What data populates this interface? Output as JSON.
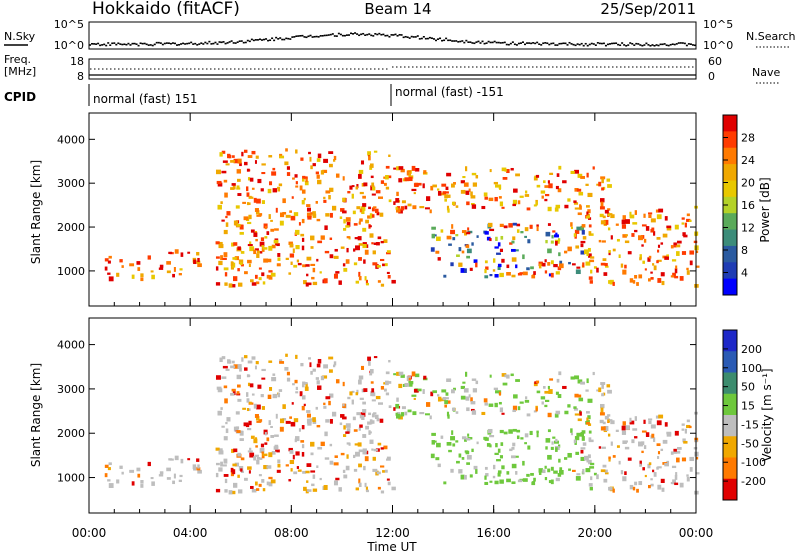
{
  "header": {
    "station": "Hokkaido (fitACF)",
    "beam": "Beam 14",
    "date": "25/Sep/2011"
  },
  "top_panels": {
    "nsky_label": "N.Sky",
    "nsearch_label": "N.Search",
    "noise_tick_high": "10^5",
    "noise_tick_low": "10^0",
    "freq_label_1": "Freq.",
    "freq_label_2": "[MHz]",
    "freq_tick_high": "18",
    "freq_tick_low": "8",
    "nave_label": "Nave",
    "nave_tick_high": "60",
    "nave_tick_low": "0",
    "cpid_label": "CPID",
    "cpid_1": "normal (fast) 151",
    "cpid_2": "normal (fast) -151"
  },
  "chart_data": [
    {
      "type": "heatmap",
      "name": "power",
      "ylabel": "Slant Range [km]",
      "xlabel": "Time UT",
      "x_ticks": [
        "00:00",
        "04:00",
        "08:00",
        "12:00",
        "16:00",
        "20:00",
        "00:00"
      ],
      "y_ticks": [
        1000,
        2000,
        3000,
        4000
      ],
      "ylim": [
        200,
        4600
      ],
      "xlim_hours": [
        0,
        24
      ],
      "colorbar_label": "Power [dB]",
      "colorbar_ticks": [
        "28",
        "24",
        "20",
        "16",
        "12",
        "8",
        "4"
      ],
      "colorbar_colors": [
        "#e00000",
        "#ff3b00",
        "#ff7a00",
        "#f0a800",
        "#e8c800",
        "#b4d228",
        "#5aaa5a",
        "#3c8c7a",
        "#2a5aa0",
        "#1f3cb4",
        "#0000ff"
      ],
      "features": [
        {
          "t0": 0.5,
          "t1": 2.1,
          "r0": 850,
          "r1": 1350,
          "level": "high"
        },
        {
          "t0": 2.3,
          "t1": 4.3,
          "r0": 900,
          "r1": 1500,
          "level": "high"
        },
        {
          "t0": 5.0,
          "t1": 12.0,
          "r0": 700,
          "r1": 3800,
          "level": "high"
        },
        {
          "t0": 12.0,
          "t1": 20.5,
          "r0": 2400,
          "r1": 3400,
          "level": "high"
        },
        {
          "t0": 13.5,
          "t1": 19.5,
          "r0": 900,
          "r1": 2100,
          "level": "mixed"
        },
        {
          "t0": 19.0,
          "t1": 24.0,
          "r0": 700,
          "r1": 2500,
          "level": "high"
        }
      ]
    },
    {
      "type": "heatmap",
      "name": "velocity",
      "ylabel": "Slant Range [km]",
      "xlabel": "Time UT",
      "x_ticks": [
        "00:00",
        "04:00",
        "08:00",
        "12:00",
        "16:00",
        "20:00",
        "00:00"
      ],
      "y_ticks": [
        1000,
        2000,
        3000,
        4000
      ],
      "ylim": [
        200,
        4600
      ],
      "colorbar_label": "Velocity [m s⁻¹]",
      "colorbar_ticks": [
        "200",
        "100",
        "50",
        "15",
        "-15",
        "-50",
        "-100",
        "-200"
      ],
      "colorbar_colors": [
        "#1e28c8",
        "#2a5ab4",
        "#3c8c6e",
        "#6ec83c",
        "#bebebe",
        "#f0a800",
        "#ff7a00",
        "#e00000"
      ]
    }
  ]
}
